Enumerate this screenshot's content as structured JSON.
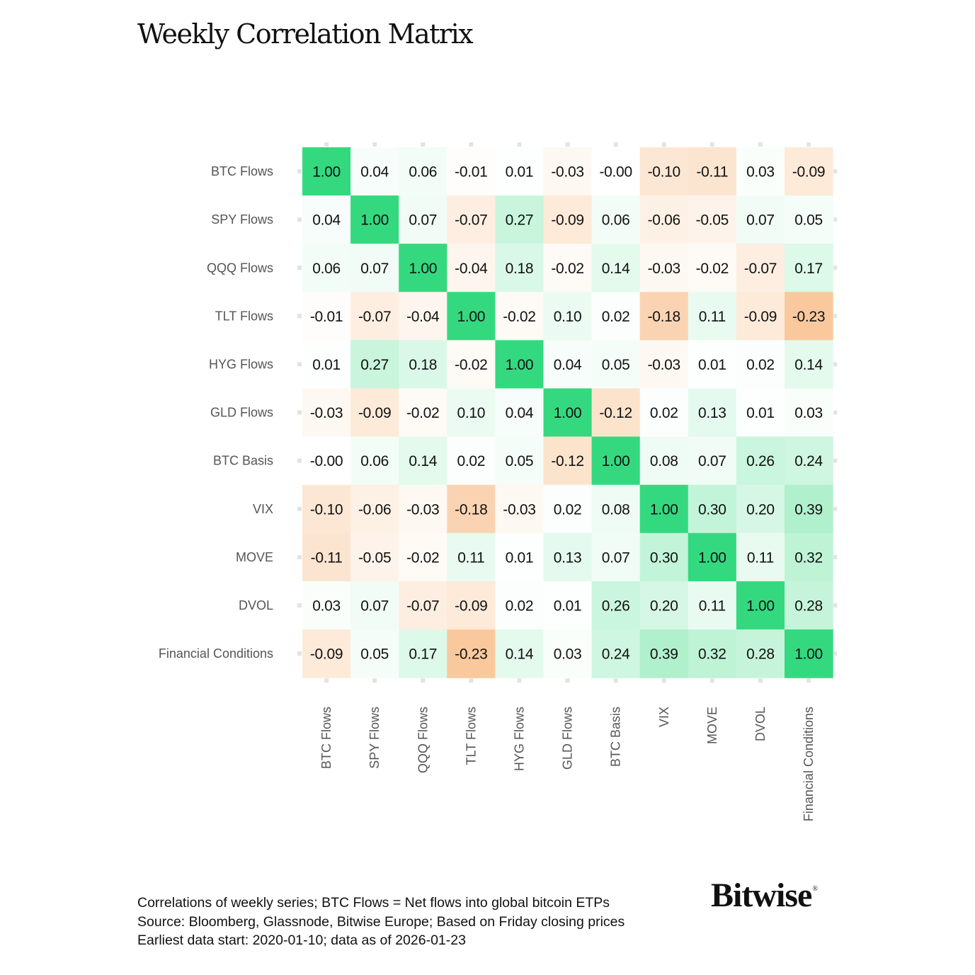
{
  "chart_data": {
    "type": "heatmap",
    "title": "Weekly Correlation Matrix",
    "rows": [
      "BTC Flows",
      "SPY Flows",
      "QQQ Flows",
      "TLT Flows",
      "HYG Flows",
      "GLD Flows",
      "BTC Basis",
      "VIX",
      "MOVE",
      "DVOL",
      "Financial Conditions"
    ],
    "columns": [
      "BTC Flows",
      "SPY Flows",
      "QQQ Flows",
      "TLT Flows",
      "HYG Flows",
      "GLD Flows",
      "BTC Basis",
      "VIX",
      "MOVE",
      "DVOL",
      "Financial Conditions"
    ],
    "values": [
      [
        1.0,
        0.04,
        0.06,
        -0.01,
        0.01,
        -0.03,
        -0.0,
        -0.1,
        -0.11,
        0.03,
        -0.09
      ],
      [
        0.04,
        1.0,
        0.07,
        -0.07,
        0.27,
        -0.09,
        0.06,
        -0.06,
        -0.05,
        0.07,
        0.05
      ],
      [
        0.06,
        0.07,
        1.0,
        -0.04,
        0.18,
        -0.02,
        0.14,
        -0.03,
        -0.02,
        -0.07,
        0.17
      ],
      [
        -0.01,
        -0.07,
        -0.04,
        1.0,
        -0.02,
        0.1,
        0.02,
        -0.18,
        0.11,
        -0.09,
        -0.23
      ],
      [
        0.01,
        0.27,
        0.18,
        -0.02,
        1.0,
        0.04,
        0.05,
        -0.03,
        0.01,
        0.02,
        0.14
      ],
      [
        -0.03,
        -0.09,
        -0.02,
        0.1,
        0.04,
        1.0,
        -0.12,
        0.02,
        0.13,
        0.01,
        0.03
      ],
      [
        -0.0,
        0.06,
        0.14,
        0.02,
        0.05,
        -0.12,
        1.0,
        0.08,
        0.07,
        0.26,
        0.24
      ],
      [
        -0.1,
        -0.06,
        -0.03,
        -0.18,
        -0.03,
        0.02,
        0.08,
        1.0,
        0.3,
        0.2,
        0.39
      ],
      [
        -0.11,
        -0.05,
        -0.02,
        0.11,
        0.01,
        0.13,
        0.07,
        0.3,
        1.0,
        0.11,
        0.32
      ],
      [
        0.03,
        0.07,
        -0.07,
        -0.09,
        0.02,
        0.01,
        0.26,
        0.2,
        0.11,
        1.0,
        0.28
      ],
      [
        -0.09,
        0.05,
        0.17,
        -0.23,
        0.14,
        0.03,
        0.24,
        0.39,
        0.32,
        0.28,
        1.0
      ]
    ],
    "labels": [
      [
        "1.00",
        "0.04",
        "0.06",
        "-0.01",
        "0.01",
        "-0.03",
        "-0.00",
        "-0.10",
        "-0.11",
        "0.03",
        "-0.09"
      ],
      [
        "0.04",
        "1.00",
        "0.07",
        "-0.07",
        "0.27",
        "-0.09",
        "0.06",
        "-0.06",
        "-0.05",
        "0.07",
        "0.05"
      ],
      [
        "0.06",
        "0.07",
        "1.00",
        "-0.04",
        "0.18",
        "-0.02",
        "0.14",
        "-0.03",
        "-0.02",
        "-0.07",
        "0.17"
      ],
      [
        "-0.01",
        "-0.07",
        "-0.04",
        "1.00",
        "-0.02",
        "0.10",
        "0.02",
        "-0.18",
        "0.11",
        "-0.09",
        "-0.23"
      ],
      [
        "0.01",
        "0.27",
        "0.18",
        "-0.02",
        "1.00",
        "0.04",
        "0.05",
        "-0.03",
        "0.01",
        "0.02",
        "0.14"
      ],
      [
        "-0.03",
        "-0.09",
        "-0.02",
        "0.10",
        "0.04",
        "1.00",
        "-0.12",
        "0.02",
        "0.13",
        "0.01",
        "0.03"
      ],
      [
        "-0.00",
        "0.06",
        "0.14",
        "0.02",
        "0.05",
        "-0.12",
        "1.00",
        "0.08",
        "0.07",
        "0.26",
        "0.24"
      ],
      [
        "-0.10",
        "-0.06",
        "-0.03",
        "-0.18",
        "-0.03",
        "0.02",
        "0.08",
        "1.00",
        "0.30",
        "0.20",
        "0.39"
      ],
      [
        "-0.11",
        "-0.05",
        "-0.02",
        "0.11",
        "0.01",
        "0.13",
        "0.07",
        "0.30",
        "1.00",
        "0.11",
        "0.32"
      ],
      [
        "0.03",
        "0.07",
        "-0.07",
        "-0.09",
        "0.02",
        "0.01",
        "0.26",
        "0.20",
        "0.11",
        "1.00",
        "0.28"
      ],
      [
        "-0.09",
        "0.05",
        "0.17",
        "-0.23",
        "0.14",
        "0.03",
        "0.24",
        "0.39",
        "0.32",
        "0.28",
        "1.00"
      ]
    ],
    "color_scale": {
      "positive_max": "#34d97f",
      "neutral": "#ffffff",
      "negative_max": "#f7b87f"
    },
    "grid": false,
    "legend": "none"
  },
  "footnotes": [
    "Correlations of weekly series; BTC Flows = Net flows into global bitcoin ETPs",
    "Source: Bloomberg, Glassnode, Bitwise Europe; Based on Friday closing prices",
    "Earliest data start: 2020-01-10; data as of 2026-01-23"
  ],
  "brand": {
    "name": "Bitwise",
    "mark": "®"
  },
  "colors": {
    "text": "#111111",
    "axis_label": "#555555",
    "tick": "#e3e3e3"
  }
}
